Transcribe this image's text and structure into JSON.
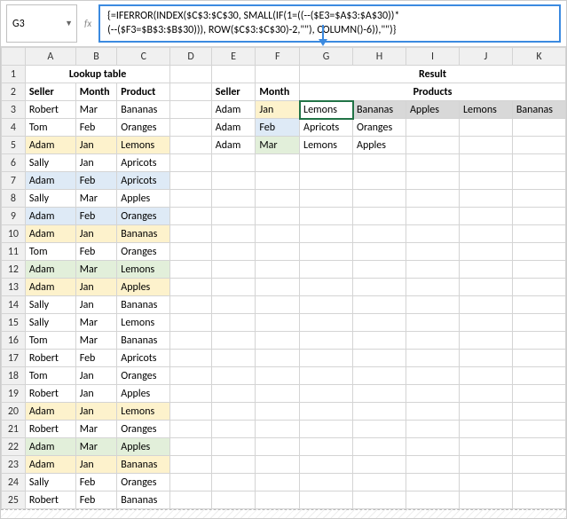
{
  "nameBox": "G3",
  "formula": {
    "line1": "{=IFERROR(INDEX($C$3:$C$30, SMALL(IF(1=((--($E3=$A$3:$A$30))*",
    "line2": "(--($F3=$B$3:$B$30))), ROW($C$3:$C$30)-2,\"\"), COLUMN()-6)),\"\")}"
  },
  "colHeaders": [
    "",
    "A",
    "B",
    "C",
    "D",
    "E",
    "F",
    "G",
    "H",
    "I",
    "J",
    "K"
  ],
  "row1": {
    "lookup": "Lookup table",
    "result": "Result"
  },
  "row2": {
    "seller": "Seller",
    "month": "Month",
    "product": "Product",
    "seller2": "Seller",
    "month2": "Month",
    "products": "Products"
  },
  "lookup": [
    {
      "n": 3,
      "s": "Robert",
      "m": "Mar",
      "p": "Bananas",
      "hl": ""
    },
    {
      "n": 4,
      "s": "Tom",
      "m": "Feb",
      "p": "Oranges",
      "hl": ""
    },
    {
      "n": 5,
      "s": "Adam",
      "m": "Jan",
      "p": "Lemons",
      "hl": "y"
    },
    {
      "n": 6,
      "s": "Sally",
      "m": "Jan",
      "p": "Apricots",
      "hl": ""
    },
    {
      "n": 7,
      "s": "Adam",
      "m": "Feb",
      "p": "Apricots",
      "hl": "b"
    },
    {
      "n": 8,
      "s": "Sally",
      "m": "Mar",
      "p": "Apples",
      "hl": ""
    },
    {
      "n": 9,
      "s": "Adam",
      "m": "Feb",
      "p": "Oranges",
      "hl": "b"
    },
    {
      "n": 10,
      "s": "Adam",
      "m": "Jan",
      "p": "Bananas",
      "hl": "y"
    },
    {
      "n": 11,
      "s": "Tom",
      "m": "Feb",
      "p": "Oranges",
      "hl": ""
    },
    {
      "n": 12,
      "s": "Adam",
      "m": "Mar",
      "p": "Lemons",
      "hl": "g"
    },
    {
      "n": 13,
      "s": "Adam",
      "m": "Jan",
      "p": "Apples",
      "hl": "y"
    },
    {
      "n": 14,
      "s": "Sally",
      "m": "Jan",
      "p": "Bananas",
      "hl": ""
    },
    {
      "n": 15,
      "s": "Sally",
      "m": "Mar",
      "p": "Lemons",
      "hl": ""
    },
    {
      "n": 16,
      "s": "Tom",
      "m": "Mar",
      "p": "Bananas",
      "hl": ""
    },
    {
      "n": 17,
      "s": "Robert",
      "m": "Feb",
      "p": "Apricots",
      "hl": ""
    },
    {
      "n": 18,
      "s": "Tom",
      "m": "Jan",
      "p": "Oranges",
      "hl": ""
    },
    {
      "n": 19,
      "s": "Robert",
      "m": "Jan",
      "p": "Apples",
      "hl": ""
    },
    {
      "n": 20,
      "s": "Adam",
      "m": "Jan",
      "p": "Lemons",
      "hl": "y"
    },
    {
      "n": 21,
      "s": "Robert",
      "m": "Mar",
      "p": "Oranges",
      "hl": ""
    },
    {
      "n": 22,
      "s": "Adam",
      "m": "Mar",
      "p": "Apples",
      "hl": "g"
    },
    {
      "n": 23,
      "s": "Adam",
      "m": "Jan",
      "p": "Bananas",
      "hl": "y"
    },
    {
      "n": 24,
      "s": "Sally",
      "m": "Feb",
      "p": "Oranges",
      "hl": ""
    },
    {
      "n": 25,
      "s": "Robert",
      "m": "Feb",
      "p": "Bananas",
      "hl": ""
    }
  ],
  "right": {
    "3": {
      "s": "Adam",
      "m": "Jan",
      "hlm": "y",
      "p": [
        "Lemons",
        "Bananas",
        "Apples",
        "Lemons",
        "Bananas"
      ]
    },
    "4": {
      "s": "Adam",
      "m": "Feb",
      "hlm": "b",
      "p": [
        "Apricots",
        "Oranges",
        "",
        "",
        ""
      ]
    },
    "5": {
      "s": "Adam",
      "m": "Mar",
      "hlm": "g",
      "p": [
        "Lemons",
        "Apples",
        "",
        "",
        ""
      ]
    }
  }
}
